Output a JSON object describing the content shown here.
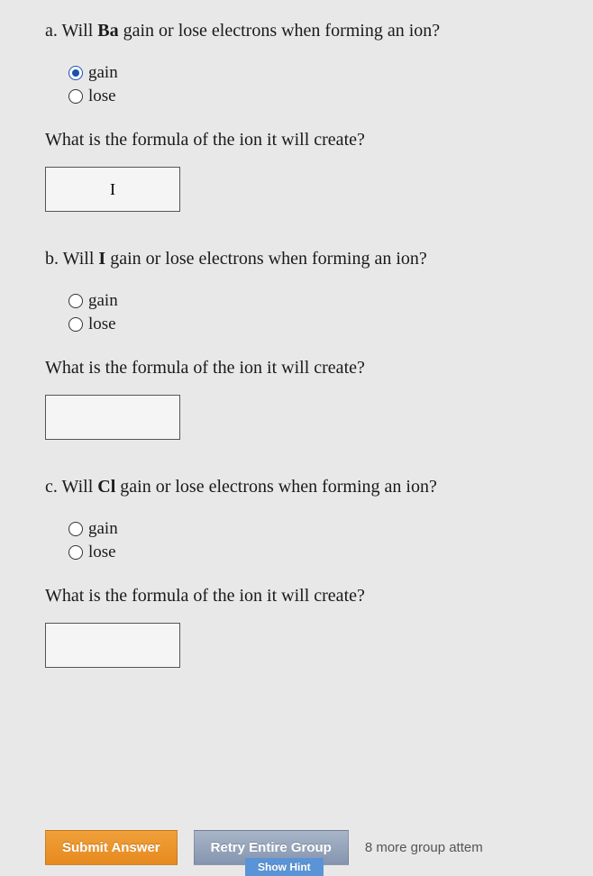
{
  "questions": [
    {
      "prefix": "a. Will ",
      "element": "Ba",
      "suffix": " gain or lose electrons when forming an ion?",
      "options": {
        "gain": "gain",
        "lose": "lose"
      },
      "selected": "gain",
      "sub": "What is the formula of the ion it will create?",
      "input_value": "I"
    },
    {
      "prefix": "b. Will ",
      "element": "I",
      "suffix": " gain or lose electrons when forming an ion?",
      "options": {
        "gain": "gain",
        "lose": "lose"
      },
      "selected": "",
      "sub": "What is the formula of the ion it will create?",
      "input_value": ""
    },
    {
      "prefix": "c. Will ",
      "element": "Cl",
      "suffix": " gain or lose electrons when forming an ion?",
      "options": {
        "gain": "gain",
        "lose": "lose"
      },
      "selected": "",
      "sub": "What is the formula of the ion it will create?",
      "input_value": ""
    }
  ],
  "buttons": {
    "submit": "Submit Answer",
    "retry": "Retry Entire Group",
    "show_hint": "Show Hint",
    "attempts": "8 more group attem"
  }
}
